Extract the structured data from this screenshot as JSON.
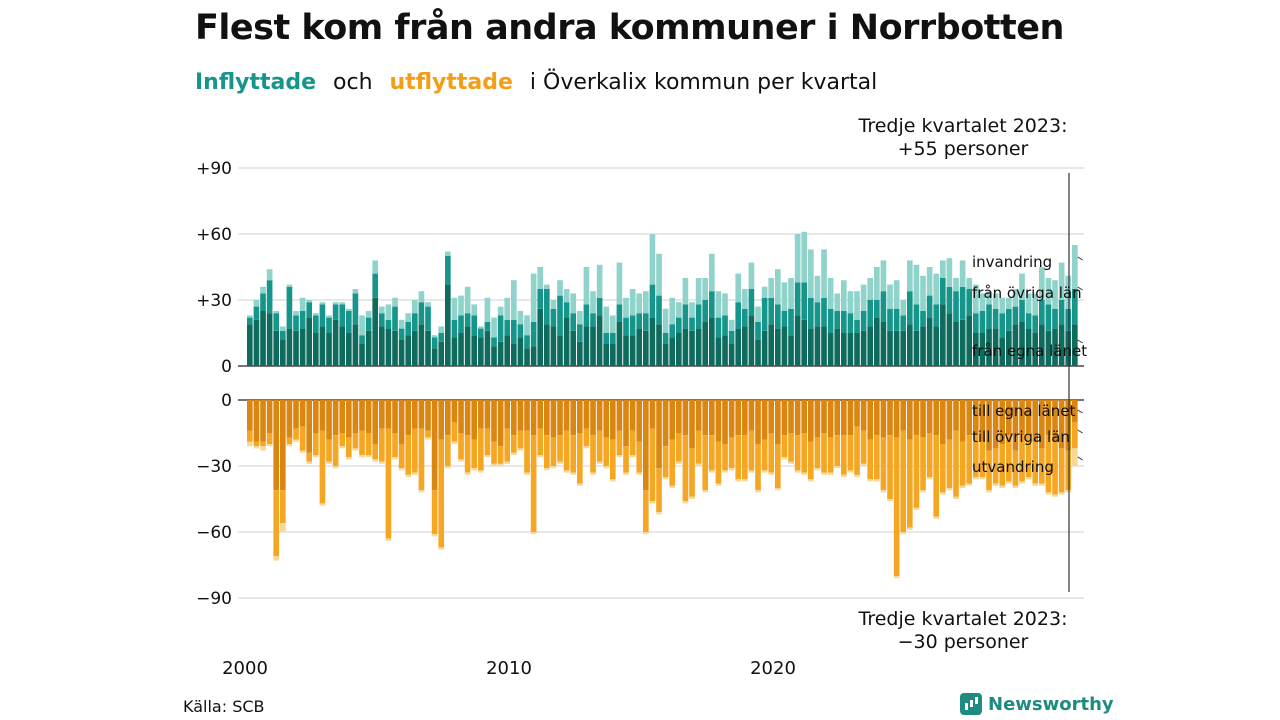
{
  "title": "Flest kom från andra kommuner i Norrbotten",
  "subtitle": {
    "word_in": "Inflyttade",
    "word_and": "och",
    "word_out": "utflyttade",
    "rest": "i Överkalix  kommun  per  kvartal"
  },
  "source": "Källa: SCB",
  "brand": "Newsworthy",
  "colors": {
    "in_county": "#0e6b5e",
    "in_other": "#16968a",
    "in_immigration": "#8fd3cb",
    "out_county": "#dc8612",
    "out_other": "#f5a623",
    "out_emigration": "#f8d898",
    "grid": "#d9d9d9"
  },
  "chart_data": {
    "type": "bar",
    "stacked": true,
    "x_start_year": 2000,
    "quarters_per_year": 4,
    "x_ticks": [
      "2000",
      "2010",
      "2020"
    ],
    "top_panel": {
      "y_ticks": [
        "+90",
        "+60",
        "+30",
        "0"
      ],
      "ylim": [
        0,
        90
      ],
      "segment_labels": [
        "invandring",
        "från övriga län",
        "från egna länet"
      ],
      "annotation": [
        "Tredje kvartalet 2023:",
        "+55 personer"
      ],
      "series": [
        {
          "name": "från egna länet",
          "values": [
            19,
            21,
            25,
            24,
            16,
            12,
            17,
            16,
            17,
            22,
            15,
            18,
            15,
            21,
            18,
            15,
            19,
            10,
            16,
            31,
            18,
            17,
            16,
            12,
            14,
            16,
            19,
            16,
            8,
            11,
            37,
            13,
            15,
            18,
            14,
            13,
            16,
            9,
            11,
            14,
            10,
            13,
            8,
            9,
            26,
            19,
            18,
            14,
            22,
            16,
            11,
            18,
            18,
            23,
            10,
            10,
            20,
            14,
            14,
            17,
            16,
            22,
            19,
            10,
            13,
            15,
            17,
            16,
            17,
            20,
            22,
            13,
            14,
            10,
            17,
            18,
            23,
            12,
            16,
            19,
            17,
            18,
            14,
            23,
            21,
            17,
            18,
            18,
            15,
            17,
            15,
            15,
            15,
            16,
            18,
            22,
            20,
            16,
            16,
            16,
            19,
            16,
            18,
            22,
            18,
            28,
            24,
            20,
            21,
            23,
            15,
            15,
            17,
            17,
            13,
            16,
            19,
            20,
            17,
            15,
            19,
            16,
            17,
            19,
            16,
            19
          ]
        },
        {
          "name": "från övriga län",
          "values": [
            3,
            6,
            8,
            15,
            8,
            4,
            19,
            7,
            8,
            7,
            8,
            10,
            7,
            7,
            10,
            10,
            14,
            4,
            6,
            11,
            6,
            4,
            11,
            5,
            6,
            8,
            10,
            11,
            5,
            4,
            13,
            8,
            8,
            6,
            9,
            4,
            4,
            4,
            12,
            7,
            11,
            6,
            6,
            11,
            9,
            16,
            8,
            18,
            7,
            8,
            8,
            10,
            6,
            8,
            5,
            5,
            8,
            8,
            9,
            7,
            8,
            15,
            13,
            5,
            6,
            7,
            11,
            6,
            11,
            10,
            12,
            9,
            9,
            6,
            12,
            8,
            12,
            8,
            15,
            12,
            11,
            7,
            12,
            15,
            17,
            14,
            11,
            13,
            11,
            8,
            10,
            9,
            6,
            9,
            12,
            8,
            14,
            10,
            10,
            7,
            15,
            12,
            7,
            10,
            10,
            12,
            12,
            14,
            15,
            12,
            9,
            10,
            11,
            9,
            11,
            10,
            8,
            10,
            7,
            8,
            11,
            12,
            9,
            11,
            10,
            16
          ]
        },
        {
          "name": "invandring",
          "values": [
            1,
            3,
            3,
            5,
            1,
            2,
            1,
            2,
            6,
            1,
            1,
            1,
            1,
            1,
            1,
            1,
            2,
            9,
            3,
            6,
            3,
            7,
            4,
            4,
            4,
            6,
            5,
            2,
            1,
            3,
            2,
            10,
            9,
            12,
            5,
            1,
            11,
            9,
            4,
            10,
            18,
            6,
            9,
            22,
            10,
            2,
            4,
            7,
            6,
            9,
            6,
            17,
            10,
            15,
            12,
            8,
            19,
            9,
            12,
            9,
            10,
            23,
            19,
            11,
            12,
            7,
            12,
            7,
            12,
            10,
            17,
            12,
            10,
            5,
            13,
            9,
            12,
            7,
            5,
            9,
            16,
            13,
            14,
            22,
            23,
            22,
            12,
            22,
            14,
            8,
            14,
            10,
            13,
            12,
            10,
            15,
            14,
            11,
            13,
            7,
            14,
            18,
            16,
            13,
            14,
            8,
            13,
            6,
            12,
            5,
            13,
            8,
            6,
            7,
            7,
            5,
            8,
            12,
            9,
            10,
            15,
            12,
            13,
            17,
            15,
            20
          ]
        }
      ]
    },
    "bottom_panel": {
      "y_ticks": [
        "0",
        "−30",
        "−60",
        "−90"
      ],
      "ylim": [
        -90,
        0
      ],
      "segment_labels": [
        "till egna länet",
        "till övriga län",
        "utvandring"
      ],
      "annotation": [
        "Tredje kvartalet 2023:",
        "−30 personer"
      ],
      "series": [
        {
          "name": "till egna länet",
          "values": [
            -14,
            -19,
            -19,
            -15,
            -41,
            -41,
            -17,
            -13,
            -12,
            -24,
            -15,
            -14,
            -18,
            -16,
            -15,
            -17,
            -15,
            -14,
            -15,
            -20,
            -13,
            -13,
            -15,
            -20,
            -16,
            -13,
            -13,
            -14,
            -41,
            -18,
            -16,
            -10,
            -15,
            -16,
            -18,
            -13,
            -13,
            -19,
            -21,
            -13,
            -16,
            -14,
            -14,
            -16,
            -13,
            -16,
            -17,
            -16,
            -14,
            -16,
            -15,
            -13,
            -16,
            -14,
            -17,
            -18,
            -14,
            -21,
            -14,
            -19,
            -41,
            -13,
            -31,
            -21,
            -18,
            -15,
            -16,
            -22,
            -14,
            -16,
            -16,
            -19,
            -20,
            -17,
            -16,
            -16,
            -14,
            -20,
            -18,
            -15,
            -20,
            -16,
            -15,
            -16,
            -15,
            -19,
            -17,
            -15,
            -17,
            -16,
            -16,
            -16,
            -12,
            -14,
            -18,
            -16,
            -17,
            -16,
            -17,
            -14,
            -18,
            -16,
            -17,
            -15,
            -16,
            -20,
            -18,
            -14,
            -19,
            -16,
            -15,
            -19,
            -23,
            -22,
            -20,
            -16,
            -23,
            -16,
            -15,
            -19,
            -22,
            -16,
            -19,
            -22,
            -23,
            -10
          ]
        },
        {
          "name": "till övriga län",
          "values": [
            -5,
            -2,
            -2,
            -5,
            -30,
            -15,
            -3,
            -5,
            -11,
            -4,
            -10,
            -33,
            -10,
            -14,
            -6,
            -9,
            -7,
            -11,
            -10,
            -7,
            -15,
            -50,
            -11,
            -11,
            -18,
            -20,
            -28,
            -3,
            -20,
            -49,
            -14,
            -9,
            -12,
            -17,
            -13,
            -19,
            -12,
            -10,
            -8,
            -15,
            -8,
            -8,
            -19,
            -44,
            -12,
            -15,
            -13,
            -12,
            -18,
            -17,
            -23,
            -8,
            -17,
            -14,
            -13,
            -18,
            -11,
            -12,
            -11,
            -14,
            -19,
            -33,
            -20,
            -14,
            -21,
            -13,
            -30,
            -22,
            -15,
            -25,
            -16,
            -19,
            -12,
            -14,
            -20,
            -20,
            -18,
            -21,
            -14,
            -18,
            -20,
            -10,
            -13,
            -16,
            -18,
            -17,
            -14,
            -18,
            -16,
            -14,
            -18,
            -16,
            -22,
            -15,
            -18,
            -20,
            -24,
            -29,
            -63,
            -46,
            -40,
            -33,
            -24,
            -20,
            -37,
            -22,
            -22,
            -30,
            -20,
            -22,
            -20,
            -16,
            -18,
            -16,
            -19,
            -21,
            -16,
            -21,
            -20,
            -19,
            -16,
            -26,
            -24,
            -20,
            -18,
            -12
          ]
        },
        {
          "name": "utvandring",
          "values": [
            -2,
            -1,
            -2,
            -1,
            -2,
            -4,
            -1,
            -1,
            -1,
            -1,
            -1,
            -1,
            -1,
            -1,
            -1,
            -1,
            -1,
            -1,
            -1,
            -1,
            -1,
            -1,
            -1,
            -1,
            -1,
            -1,
            -1,
            -1,
            -1,
            -1,
            -1,
            -1,
            -1,
            -1,
            -1,
            -1,
            -1,
            -1,
            -1,
            -1,
            -1,
            -1,
            -1,
            -1,
            -1,
            -1,
            -1,
            -1,
            -1,
            -1,
            -1,
            -1,
            -1,
            -1,
            -1,
            -1,
            -1,
            -1,
            -1,
            -1,
            -1,
            -1,
            -1,
            -1,
            -1,
            -1,
            -1,
            -1,
            -1,
            -1,
            -1,
            -1,
            -1,
            -1,
            -1,
            -1,
            -1,
            -1,
            -1,
            -1,
            -1,
            -1,
            -1,
            -1,
            -1,
            -1,
            -1,
            -1,
            -1,
            -1,
            -1,
            -1,
            -1,
            -1,
            -1,
            -1,
            -1,
            -1,
            -1,
            -1,
            -1,
            -1,
            -1,
            -1,
            -1,
            -1,
            -1,
            -1,
            -1,
            -1,
            -1,
            -1,
            -1,
            -1,
            -1,
            -1,
            -1,
            -1,
            -1,
            -1,
            -1,
            -1,
            -1,
            -1,
            -1,
            -8
          ]
        }
      ]
    }
  }
}
